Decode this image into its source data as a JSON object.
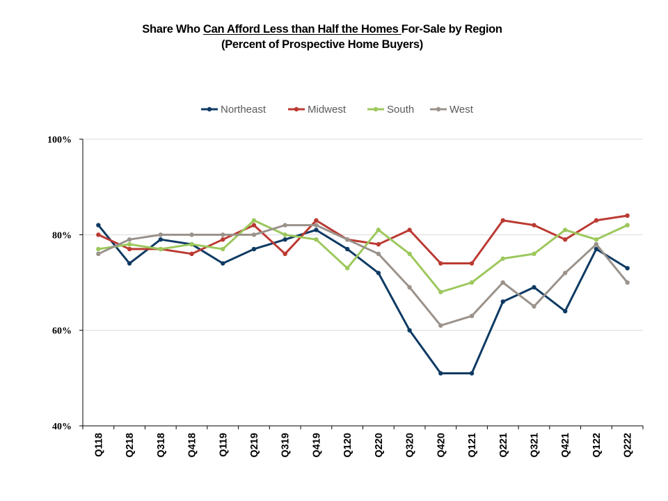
{
  "title": {
    "part1": "Share Who ",
    "part2_underlined": "Can Afford Less than Half the Homes ",
    "part3": "For-Sale by Region",
    "line2": "(Percent of Prospective Home Buyers)"
  },
  "chart_data": {
    "type": "line",
    "title": "Share Who Can Afford Less than Half the Homes For-Sale by Region",
    "subtitle": "(Percent of Prospective Home Buyers)",
    "xlabel": "",
    "ylabel": "",
    "categories": [
      "Q118",
      "Q218",
      "Q318",
      "Q418",
      "Q119",
      "Q219",
      "Q319",
      "Q419",
      "Q120",
      "Q220",
      "Q320",
      "Q420",
      "Q121",
      "Q221",
      "Q321",
      "Q421",
      "Q122",
      "Q222"
    ],
    "ylim": [
      40,
      100
    ],
    "yticks": [
      40,
      60,
      80,
      100
    ],
    "ytick_labels": [
      "40%",
      "60%",
      "80%",
      "100%"
    ],
    "grid": true,
    "legend_position": "top-center",
    "series": [
      {
        "name": "Northeast",
        "color": "#0e3a63",
        "values": [
          82,
          74,
          79,
          78,
          74,
          77,
          79,
          81,
          77,
          72,
          60,
          51,
          51,
          66,
          69,
          64,
          77,
          73
        ]
      },
      {
        "name": "Midwest",
        "color": "#bb3a32",
        "values": [
          80,
          77,
          77,
          76,
          79,
          82,
          76,
          83,
          79,
          78,
          81,
          74,
          74,
          83,
          82,
          79,
          83,
          84
        ]
      },
      {
        "name": "South",
        "color": "#9cc85c",
        "values": [
          77,
          78,
          77,
          78,
          77,
          83,
          80,
          79,
          73,
          81,
          76,
          68,
          70,
          75,
          76,
          81,
          79,
          82
        ]
      },
      {
        "name": "West",
        "color": "#9a928b",
        "values": [
          76,
          79,
          80,
          80,
          80,
          80,
          82,
          82,
          79,
          76,
          69,
          61,
          63,
          70,
          65,
          72,
          78,
          70
        ]
      }
    ]
  }
}
